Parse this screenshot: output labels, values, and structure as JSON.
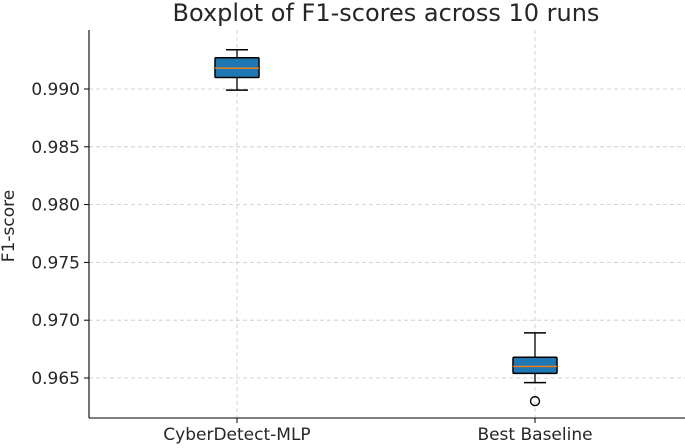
{
  "chart_data": {
    "type": "boxplot",
    "title": "Boxplot of F1-scores across 10 runs",
    "xlabel": "",
    "ylabel": "F1-score",
    "categories": [
      "CyberDetect-MLP",
      "Best Baseline"
    ],
    "ylim": [
      0.9615,
      0.9945
    ],
    "yticks": [
      0.965,
      0.97,
      0.975,
      0.98,
      0.985,
      0.99
    ],
    "ytick_labels": [
      "0.965",
      "0.970",
      "0.975",
      "0.980",
      "0.985",
      "0.990"
    ],
    "grid": true,
    "boxes": [
      {
        "name": "CyberDetect-MLP",
        "whisker_low": 0.9899,
        "q1": 0.991,
        "median": 0.9918,
        "q3": 0.9927,
        "whisker_high": 0.9934,
        "outliers": []
      },
      {
        "name": "Best Baseline",
        "whisker_low": 0.9646,
        "q1": 0.9654,
        "median": 0.966,
        "q3": 0.9668,
        "whisker_high": 0.9689,
        "outliers": [
          0.963
        ]
      }
    ],
    "colors": {
      "box_fill": "#1f77b4",
      "box_edge": "#000000",
      "median": "#ff7f0e",
      "grid": "#b0b0b0",
      "axis": "#000000"
    }
  }
}
